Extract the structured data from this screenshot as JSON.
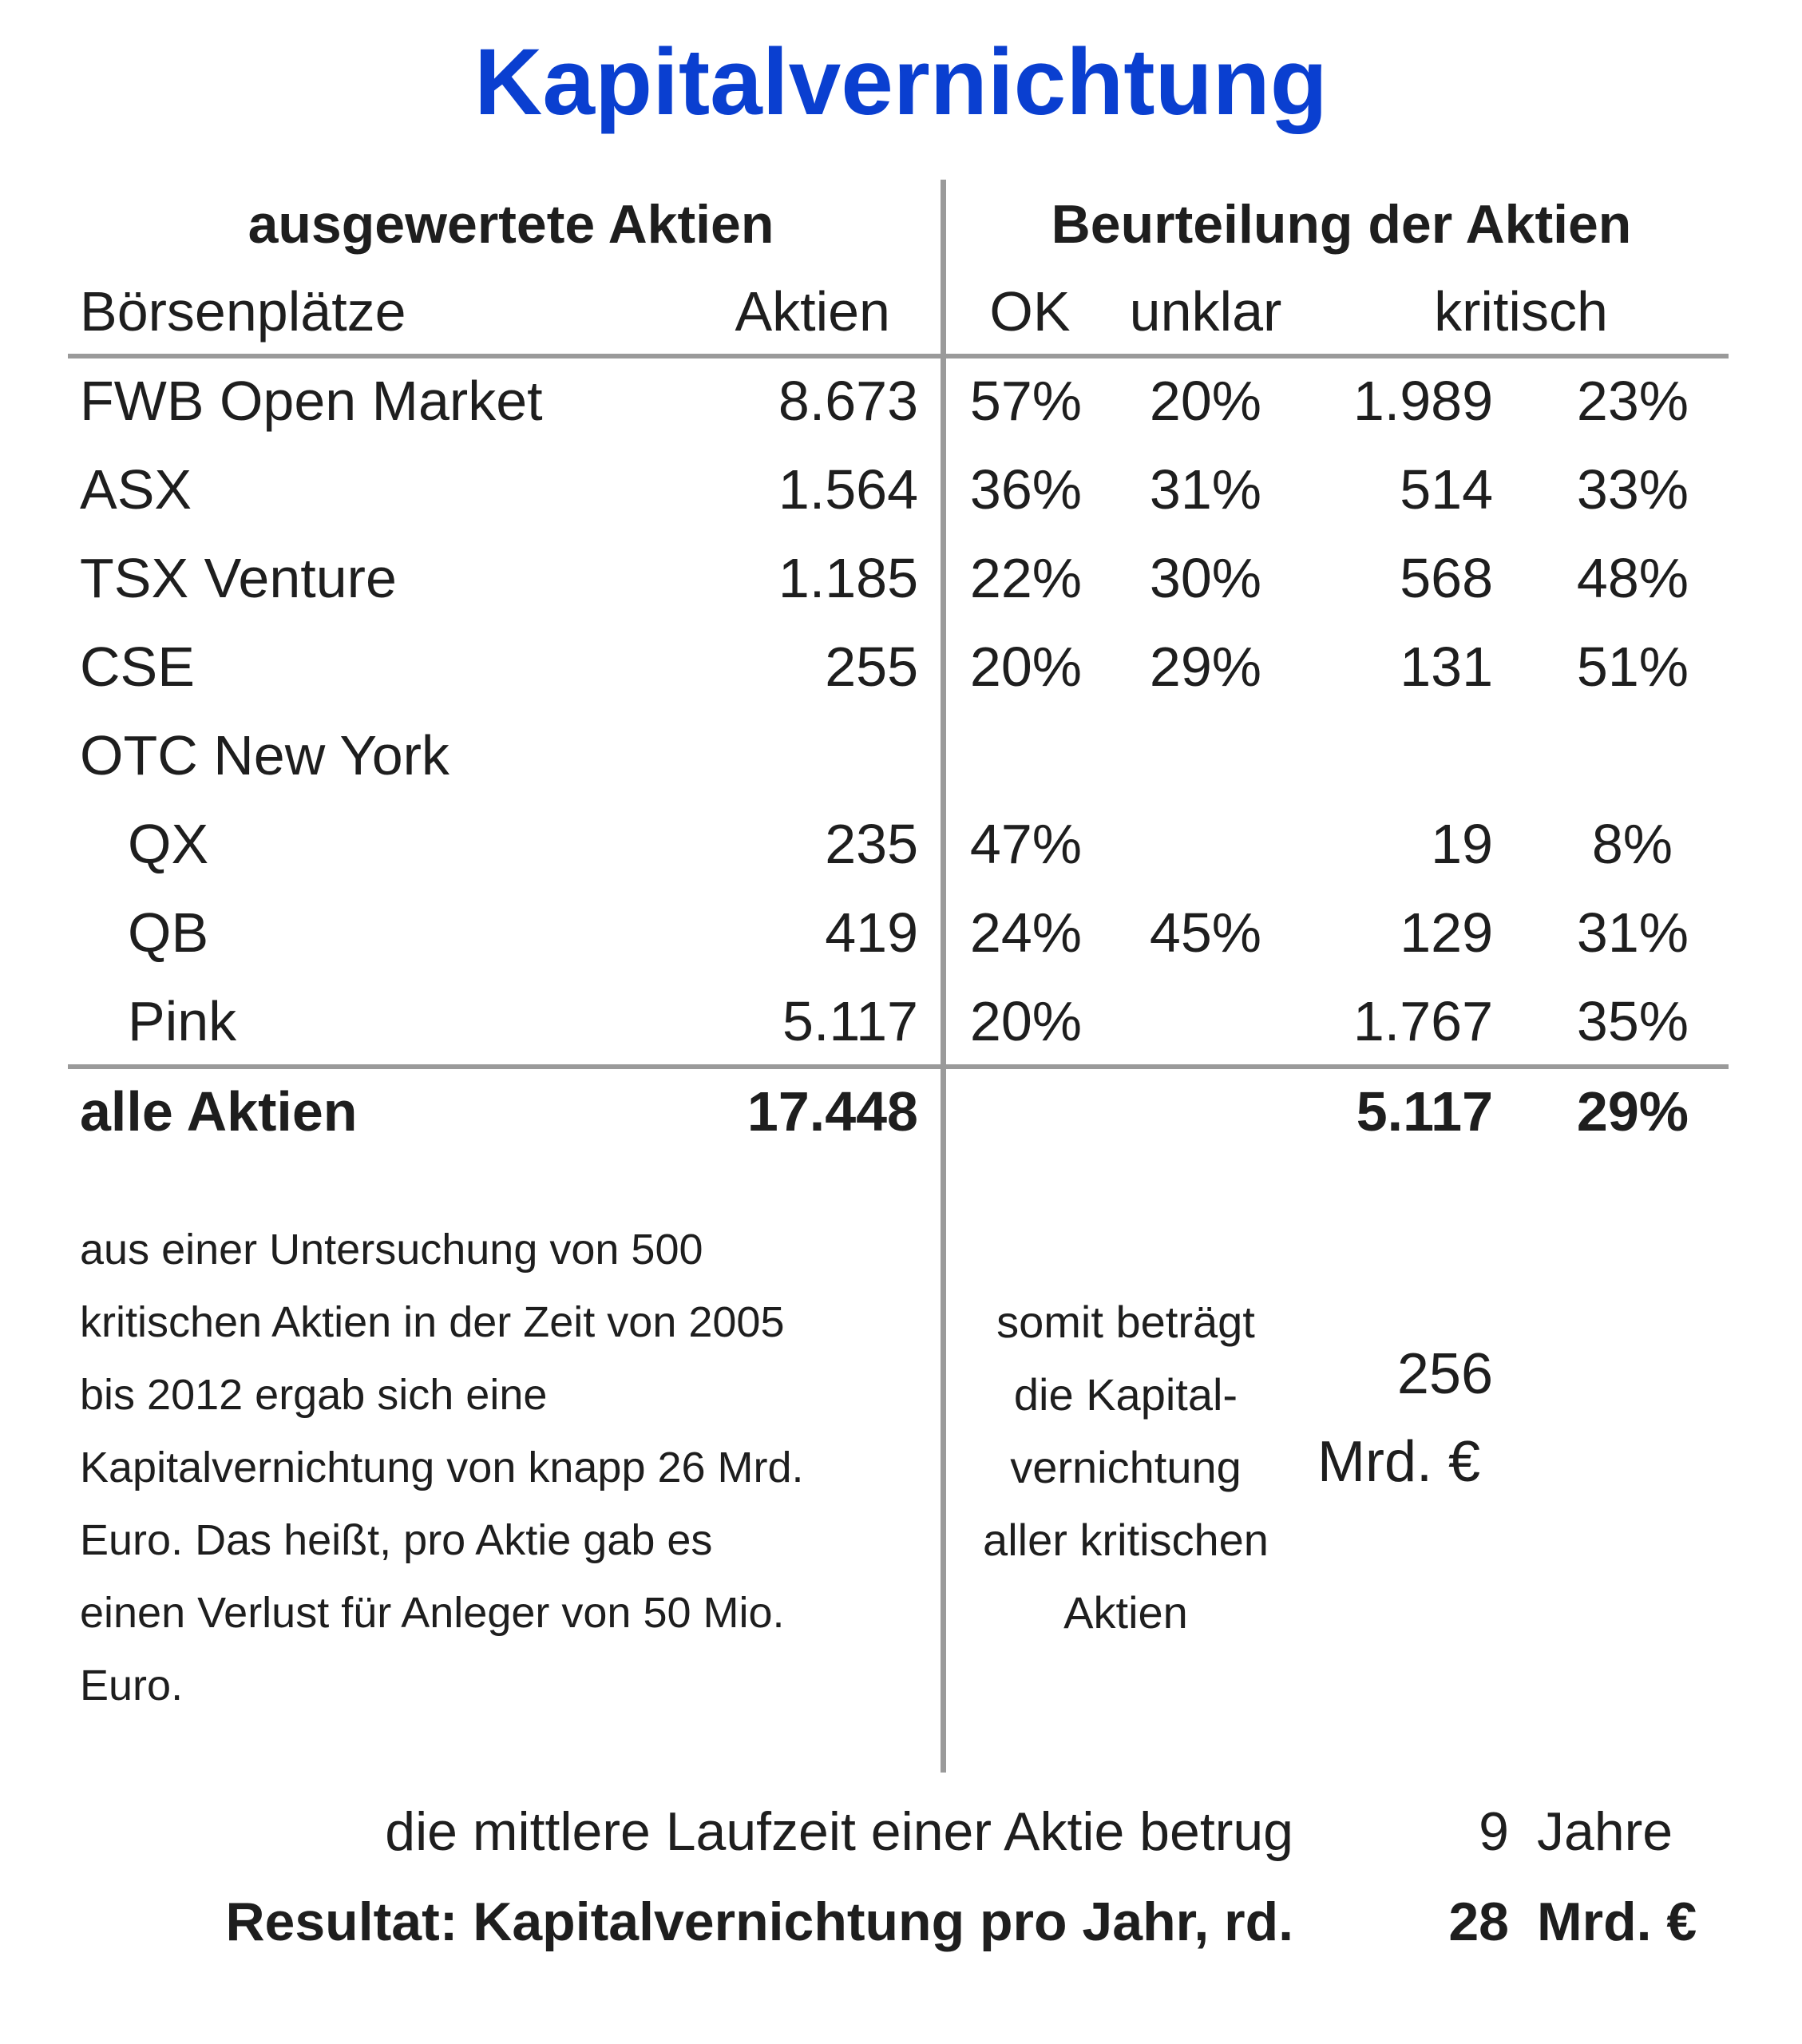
{
  "title": "Kapitalvernichtung",
  "headers": {
    "left_group": "ausgewertete Aktien",
    "right_group": "Beurteilung der Aktien",
    "col_markets": "Börsenplätze",
    "col_stocks": "Aktien",
    "col_ok": "OK",
    "col_unclear": "unklar",
    "col_critical": "kritisch"
  },
  "rows": [
    {
      "market": "FWB Open Market",
      "stocks": "8.673",
      "ok": "57%",
      "unclear": "20%",
      "critical": "1.989",
      "critical_pct": "23%"
    },
    {
      "market": "ASX",
      "stocks": "1.564",
      "ok": "36%",
      "unclear": "31%",
      "critical": "514",
      "critical_pct": "33%"
    },
    {
      "market": "TSX Venture",
      "stocks": "1.185",
      "ok": "22%",
      "unclear": "30%",
      "critical": "568",
      "critical_pct": "48%"
    },
    {
      "market": "CSE",
      "stocks": "255",
      "ok": "20%",
      "unclear": "29%",
      "critical": "131",
      "critical_pct": "51%"
    },
    {
      "market": "OTC New York",
      "stocks": "",
      "ok": "",
      "unclear": "",
      "critical": "",
      "critical_pct": ""
    },
    {
      "market": "QX",
      "stocks": "235",
      "ok": "47%",
      "unclear": "",
      "critical": "19",
      "critical_pct": "8%"
    },
    {
      "market": "QB",
      "stocks": "419",
      "ok": "24%",
      "unclear": "45%",
      "critical": "129",
      "critical_pct": "31%"
    },
    {
      "market": "Pink",
      "stocks": "5.117",
      "ok": "20%",
      "unclear": "",
      "critical": "1.767",
      "critical_pct": "35%"
    }
  ],
  "total": {
    "label": "alle Aktien",
    "stocks": "17.448",
    "critical": "5.117",
    "critical_pct": "29%"
  },
  "note_lines": [
    "aus einer Untersuchung von 500",
    "kritischen Aktien in der Zeit von 2005",
    "bis 2012 ergab sich eine",
    "Kapitalvernichtung von knapp 26 Mrd.",
    "Euro. Das heißt, pro Aktie gab es",
    "einen Verlust für Anleger von 50 Mio.",
    "Euro."
  ],
  "mid_lines": [
    "somit beträgt",
    "die Kapital-",
    "vernichtung",
    "aller kritischen",
    "Aktien"
  ],
  "total_loss": {
    "value": "256",
    "unit": "Mrd. €"
  },
  "footer": {
    "duration_label": "die mittlere Laufzeit einer Aktie betrug",
    "duration_value": "9",
    "duration_unit": "Jahre",
    "result_label": "Resultat: Kapitalvernichtung pro Jahr, rd.",
    "result_value": "28",
    "result_unit": "Mrd. €"
  }
}
